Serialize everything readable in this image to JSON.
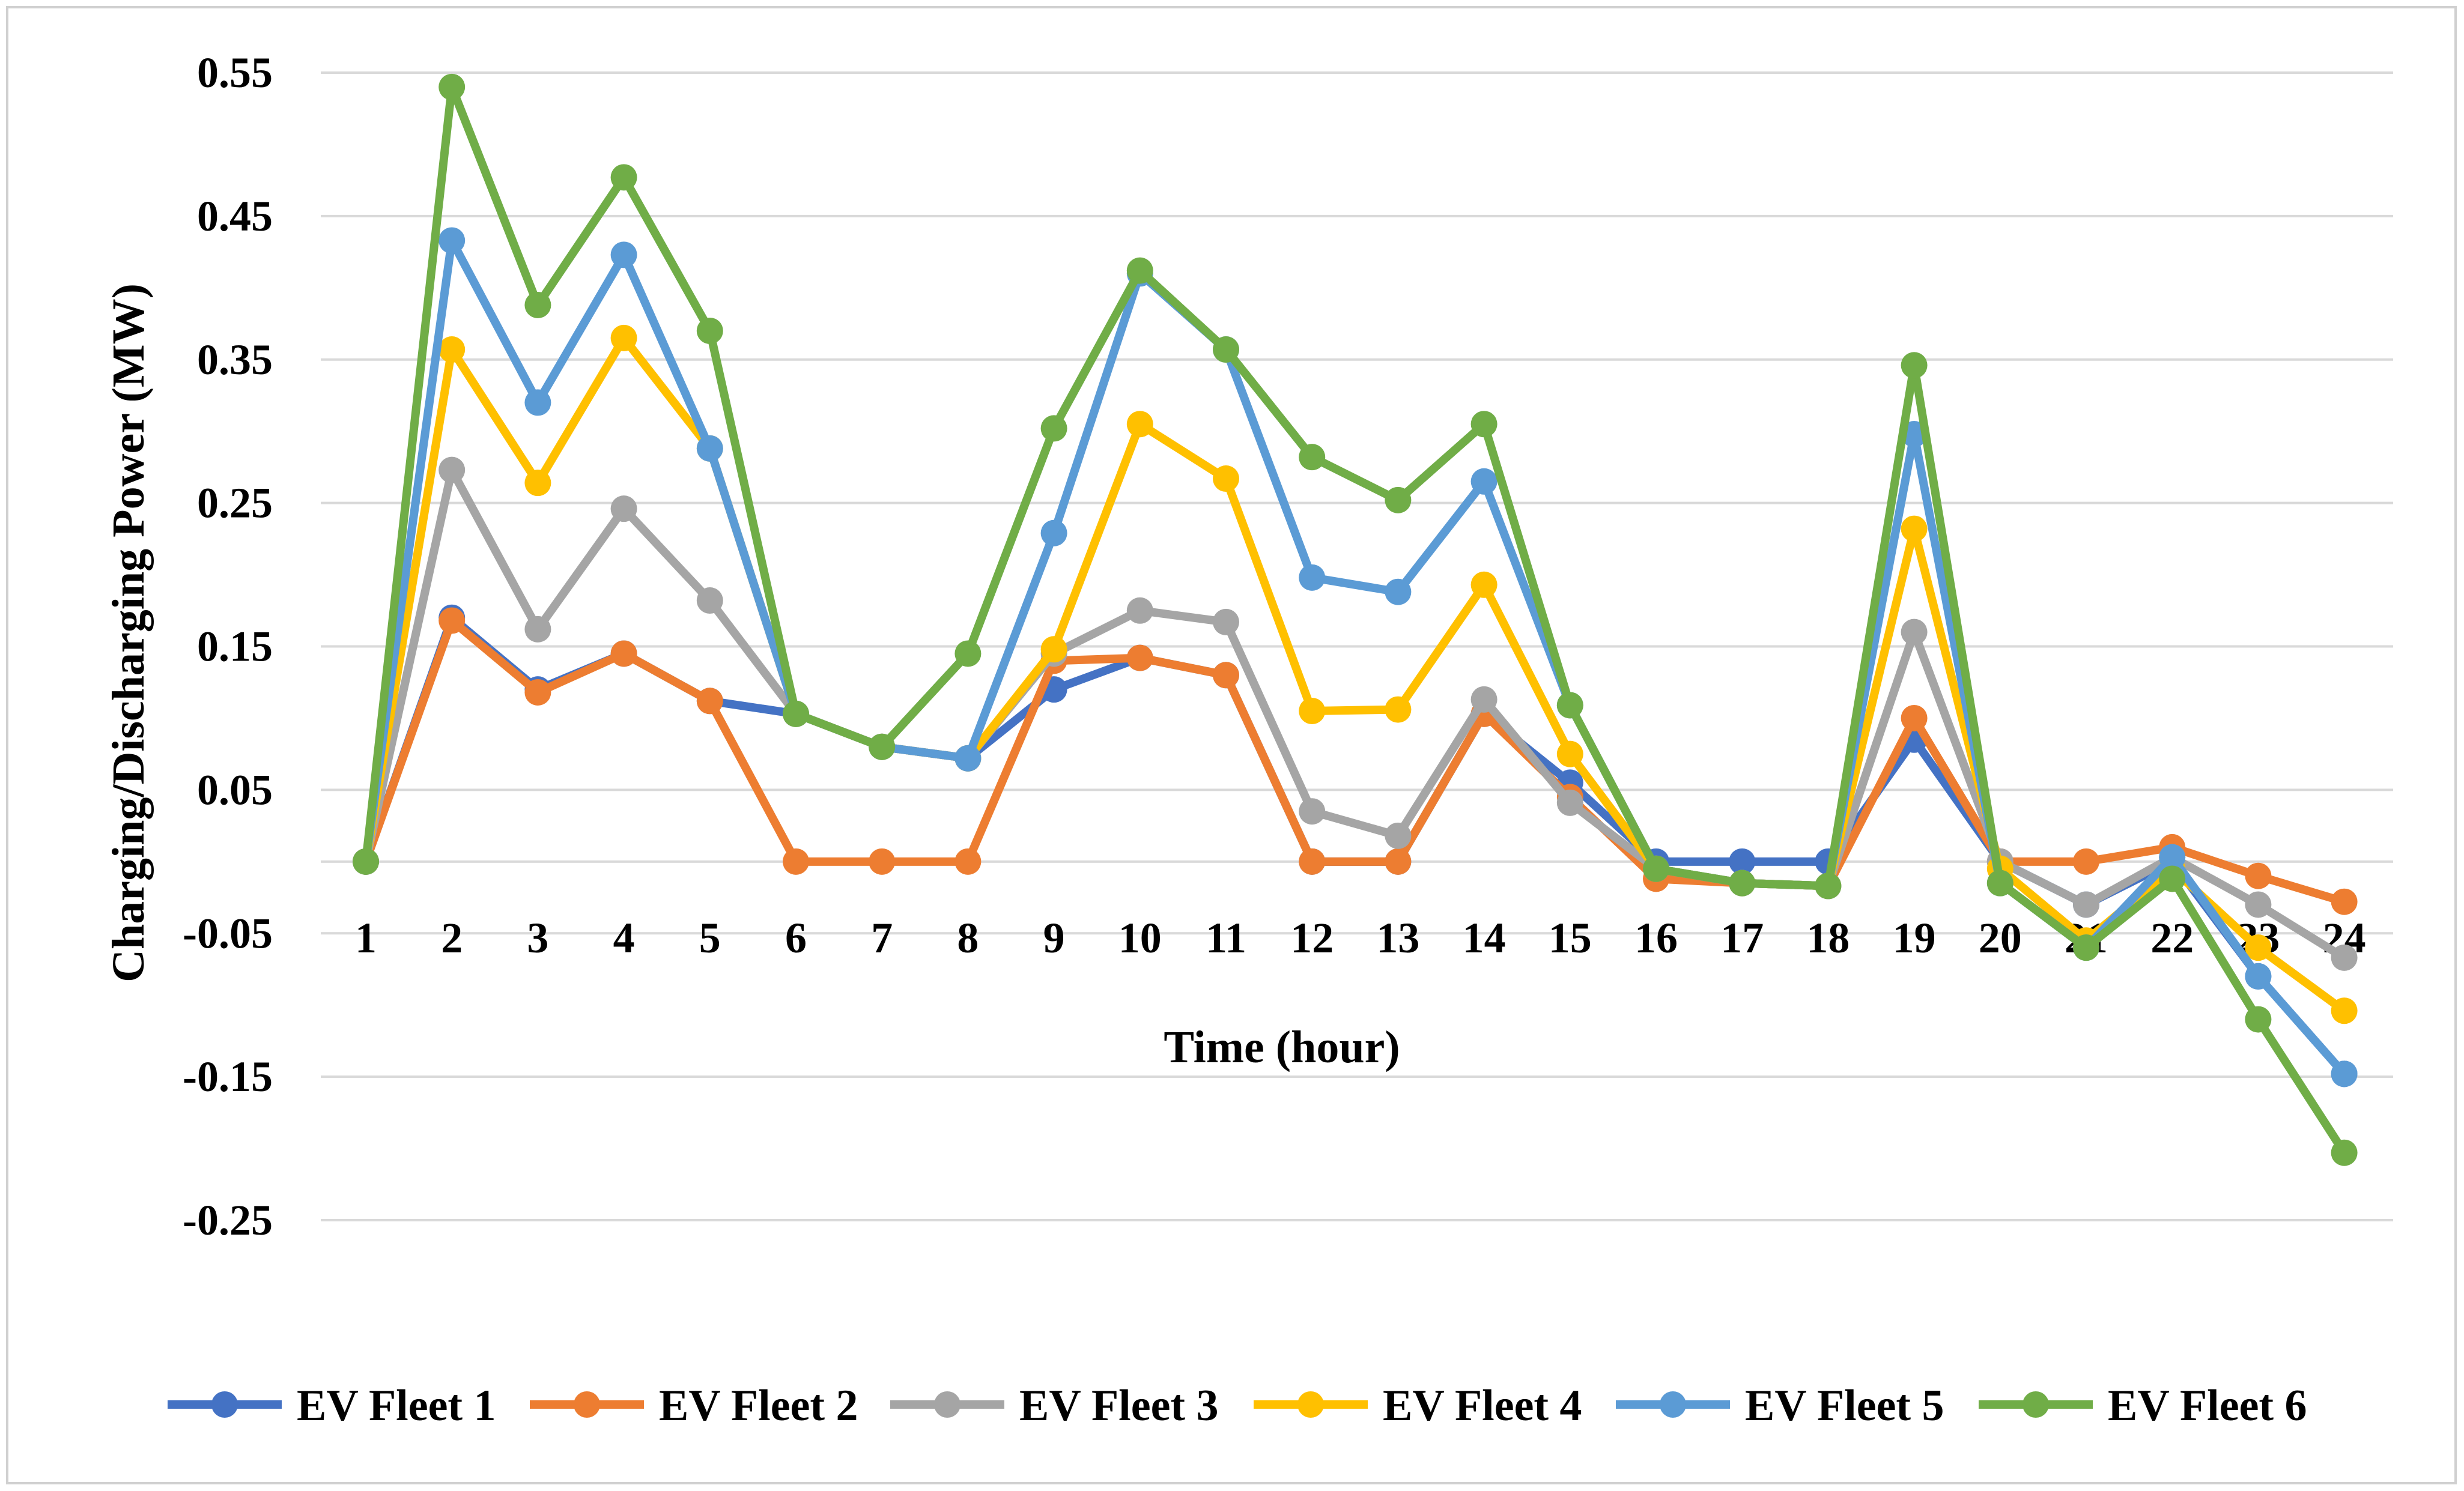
{
  "chart_data": {
    "type": "line",
    "title": "",
    "xlabel": "Time (hour)",
    "ylabel": "Charging/Discharging Power (MW)",
    "ylim": [
      -0.25,
      0.55
    ],
    "yticks": [
      "0.55",
      "0.45",
      "0.35",
      "0.25",
      "0.15",
      "0.05",
      "-0.05",
      "-0.15",
      "-0.25"
    ],
    "ytick_values": [
      0.55,
      0.45,
      0.35,
      0.25,
      0.15,
      0.05,
      -0.05,
      -0.15,
      -0.25
    ],
    "categories": [
      "1",
      "2",
      "3",
      "4",
      "5",
      "6",
      "7",
      "8",
      "9",
      "10",
      "11",
      "12",
      "13",
      "14",
      "15",
      "16",
      "17",
      "18",
      "19",
      "20",
      "21",
      "22",
      "23",
      "24"
    ],
    "grid": true,
    "legend_position": "bottom",
    "series": [
      {
        "name": "EV Fleet 1",
        "color": "#4472C4",
        "values": [
          0,
          0.17,
          0.12,
          0.145,
          0.112,
          0.103,
          0.08,
          0.072,
          0.12,
          0.142,
          0.13,
          0,
          0,
          0.103,
          0.055,
          0,
          0,
          0,
          0.085,
          0,
          -0.03,
          0,
          -0.08,
          -0.148
        ]
      },
      {
        "name": "EV Fleet 2",
        "color": "#ED7D31",
        "values": [
          0,
          0.168,
          0.118,
          0.145,
          0.112,
          0,
          0,
          0,
          0.14,
          0.142,
          0.13,
          0,
          0,
          0.103,
          0.045,
          -0.012,
          -0.015,
          -0.017,
          0.1,
          0,
          0,
          0.01,
          -0.01,
          -0.028
        ]
      },
      {
        "name": "EV Fleet 3",
        "color": "#A5A5A5",
        "values": [
          0,
          0.273,
          0.162,
          0.246,
          0.182,
          0.103,
          0.08,
          0.072,
          0.145,
          0.175,
          0.167,
          0.035,
          0.018,
          0.113,
          0.041,
          -0.005,
          -0.015,
          -0.017,
          0.16,
          0,
          -0.03,
          0.003,
          -0.03,
          -0.067
        ]
      },
      {
        "name": "EV Fleet 4",
        "color": "#FFC000",
        "values": [
          0,
          0.357,
          0.264,
          0.365,
          0.288,
          0.103,
          0.08,
          0.072,
          0.148,
          0.305,
          0.267,
          0.105,
          0.106,
          0.193,
          0.075,
          -0.005,
          -0.015,
          -0.017,
          0.232,
          -0.005,
          -0.055,
          -0.005,
          -0.06,
          -0.104
        ]
      },
      {
        "name": "EV Fleet 5",
        "color": "#5B9BD5",
        "values": [
          0,
          0.433,
          0.32,
          0.423,
          0.288,
          0.103,
          0.08,
          0.072,
          0.229,
          0.41,
          0.357,
          0.198,
          0.188,
          0.265,
          0.109,
          -0.005,
          -0.015,
          -0.017,
          0.298,
          -0.015,
          -0.06,
          0.003,
          -0.08,
          -0.148
        ]
      },
      {
        "name": "EV Fleet 6",
        "color": "#70AD47",
        "values": [
          0,
          0.54,
          0.388,
          0.477,
          0.37,
          0.103,
          0.08,
          0.145,
          0.302,
          0.412,
          0.357,
          0.282,
          0.252,
          0.305,
          0.109,
          -0.005,
          -0.015,
          -0.017,
          0.346,
          -0.015,
          -0.06,
          -0.012,
          -0.11,
          -0.203
        ]
      }
    ]
  }
}
